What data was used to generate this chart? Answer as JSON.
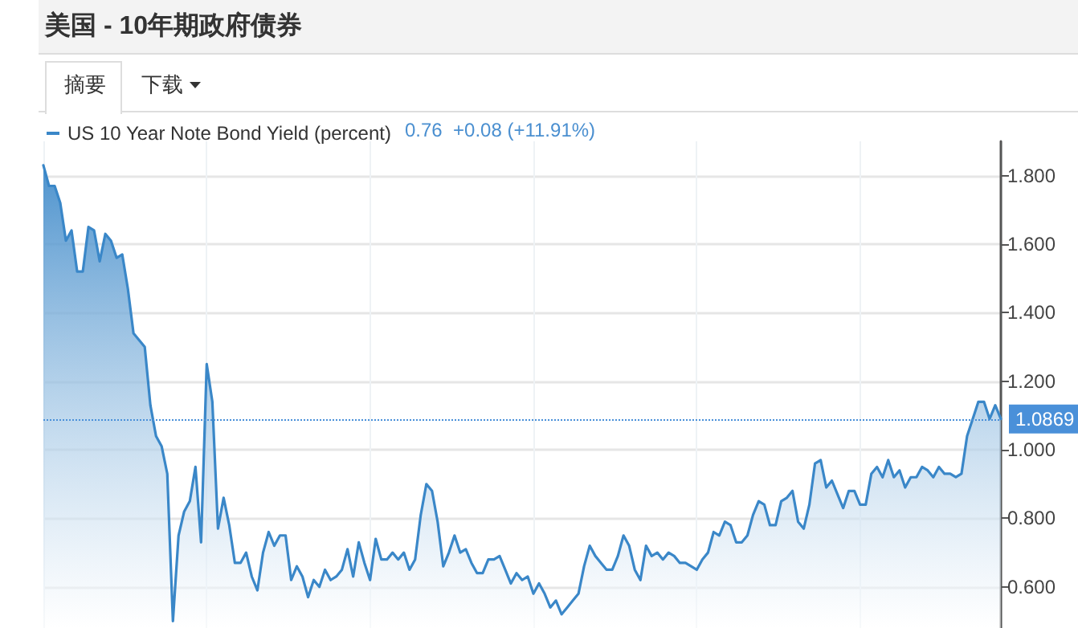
{
  "chart_data": {
    "type": "area",
    "title": "美国 - 10年期政府债券",
    "annotations": [
      "摘要",
      "下载",
      "0.76  +0.08 (+11.91%)"
    ],
    "categories": [
      null,
      null,
      null,
      null,
      null,
      null,
      null,
      null,
      null,
      null,
      null,
      null,
      null,
      null,
      null,
      null,
      null,
      null,
      null,
      null,
      null,
      null,
      null,
      null,
      null,
      null,
      null,
      null,
      null,
      null,
      null,
      null,
      null,
      null,
      null,
      null,
      null,
      null,
      null,
      null,
      null,
      null,
      null,
      null,
      null,
      null,
      null,
      null,
      null,
      null,
      null,
      null,
      null,
      null,
      null,
      null,
      null,
      null,
      null,
      null,
      null,
      null,
      null,
      null,
      null,
      null,
      null,
      null,
      null,
      null,
      null,
      null,
      null,
      null,
      null,
      null,
      null,
      null,
      null,
      null,
      null,
      null,
      null,
      null,
      null,
      null,
      null,
      null,
      null,
      null,
      null,
      null,
      null,
      null,
      null,
      null,
      null,
      null,
      null,
      null,
      null,
      null,
      null,
      null,
      null,
      null,
      null,
      null,
      null,
      null,
      null,
      null,
      null,
      null,
      null,
      null,
      null,
      null,
      null,
      null,
      null,
      null,
      null,
      null,
      null,
      null,
      null,
      null,
      null,
      null,
      null,
      null,
      null,
      null,
      null,
      null,
      null,
      null,
      null,
      null,
      null,
      null,
      null,
      null,
      null,
      null,
      null,
      null,
      null,
      null,
      null,
      null,
      null,
      null,
      null,
      null,
      null,
      null,
      null,
      null,
      null,
      null,
      null,
      null,
      null,
      null,
      null,
      null,
      null,
      null,
      null
    ],
    "ylim": [
      0.48,
      1.9
    ],
    "yticks": [
      {
        "value": 0.6,
        "label": "0.600"
      },
      {
        "value": 0.8,
        "label": "0.800"
      },
      {
        "value": 1.0,
        "label": "1.000"
      },
      {
        "value": 1.2,
        "label": "1.200"
      },
      {
        "value": 1.4,
        "label": "1.400"
      },
      {
        "value": 1.6,
        "label": "1.600"
      },
      {
        "value": 1.8,
        "label": "1.800"
      }
    ],
    "tick_labels": "y",
    "grid": true,
    "legend": "top left",
    "line_style": "solid",
    "ref_lines": [
      {
        "axis": "y",
        "value": 1.0869,
        "label": "1.0869",
        "color": "#4a90d9",
        "line_style": "dotted"
      }
    ],
    "series": [
      {
        "name": "US 10 Year Note Bond Yield (percent)",
        "color": "#3a87c8",
        "values": [
          1.83,
          1.77,
          1.77,
          1.72,
          1.61,
          1.64,
          1.52,
          1.52,
          1.65,
          1.64,
          1.55,
          1.63,
          1.61,
          1.56,
          1.57,
          1.47,
          1.34,
          1.32,
          1.3,
          1.13,
          1.04,
          1.01,
          0.93,
          0.5,
          0.75,
          0.82,
          0.85,
          0.95,
          0.73,
          1.25,
          1.14,
          0.77,
          0.86,
          0.78,
          0.67,
          0.67,
          0.7,
          0.63,
          0.59,
          0.7,
          0.76,
          0.72,
          0.75,
          0.75,
          0.62,
          0.66,
          0.63,
          0.57,
          0.62,
          0.6,
          0.65,
          0.62,
          0.63,
          0.65,
          0.71,
          0.63,
          0.73,
          0.67,
          0.62,
          0.74,
          0.68,
          0.68,
          0.7,
          0.68,
          0.7,
          0.65,
          0.68,
          0.81,
          0.9,
          0.88,
          0.79,
          0.66,
          0.7,
          0.75,
          0.7,
          0.71,
          0.67,
          0.64,
          0.64,
          0.68,
          0.68,
          0.69,
          0.65,
          0.61,
          0.64,
          0.62,
          0.63,
          0.58,
          0.61,
          0.58,
          0.54,
          0.56,
          0.52,
          0.54,
          0.56,
          0.58,
          0.66,
          0.72,
          0.69,
          0.67,
          0.65,
          0.65,
          0.69,
          0.75,
          0.72,
          0.65,
          0.62,
          0.72,
          0.69,
          0.7,
          0.68,
          0.7,
          0.69,
          0.67,
          0.67,
          0.66,
          0.65,
          0.68,
          0.7,
          0.76,
          0.75,
          0.79,
          0.78,
          0.73,
          0.73,
          0.75,
          0.81,
          0.85,
          0.84,
          0.78,
          0.78,
          0.85,
          0.86,
          0.88,
          0.79,
          0.77,
          0.84,
          0.96,
          0.97,
          0.89,
          0.91,
          0.87,
          0.83,
          0.88,
          0.88,
          0.84,
          0.84,
          0.93,
          0.95,
          0.92,
          0.97,
          0.92,
          0.94,
          0.89,
          0.92,
          0.92,
          0.95,
          0.94,
          0.92,
          0.95,
          0.93,
          0.93,
          0.92,
          0.93,
          1.04,
          1.09,
          1.14,
          1.14,
          1.09,
          1.13,
          1.09
        ]
      }
    ]
  }
}
